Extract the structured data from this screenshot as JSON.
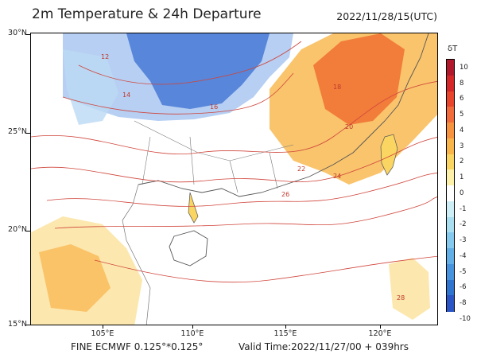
{
  "title": "2m Temperature & 24h Departure",
  "datetime": "2022/11/28/15(UTC)",
  "model": "FINE ECMWF 0.125°*0.125°",
  "valid_time": "Valid Time:2022/11/27/00 + 039hrs",
  "lat_labels": [
    "30°N",
    "25°N",
    "20°N",
    "15°N"
  ],
  "lon_labels": [
    "105°E",
    "110°E",
    "115°E",
    "120°E"
  ],
  "colorbar": {
    "title": "δT",
    "labels": [
      "10",
      "8",
      "6",
      "5",
      "4",
      "3",
      "2",
      "1",
      "0",
      "-1",
      "-2",
      "-3",
      "-4",
      "-5",
      "-6",
      "-8",
      "-10"
    ],
    "colors": [
      "#b2182b",
      "#d62728",
      "#e8452c",
      "#f26b3a",
      "#f7923f",
      "#f9b44a",
      "#fbd562",
      "#fdf0a8",
      "#ffffff",
      "#cdeef5",
      "#a8def0",
      "#86c9ef",
      "#62aee6",
      "#4793de",
      "#2f74cf",
      "#2b55c4"
    ]
  },
  "contour_labels": [
    "12",
    "14",
    "16",
    "18",
    "20",
    "22",
    "24",
    "26",
    "28"
  ]
}
